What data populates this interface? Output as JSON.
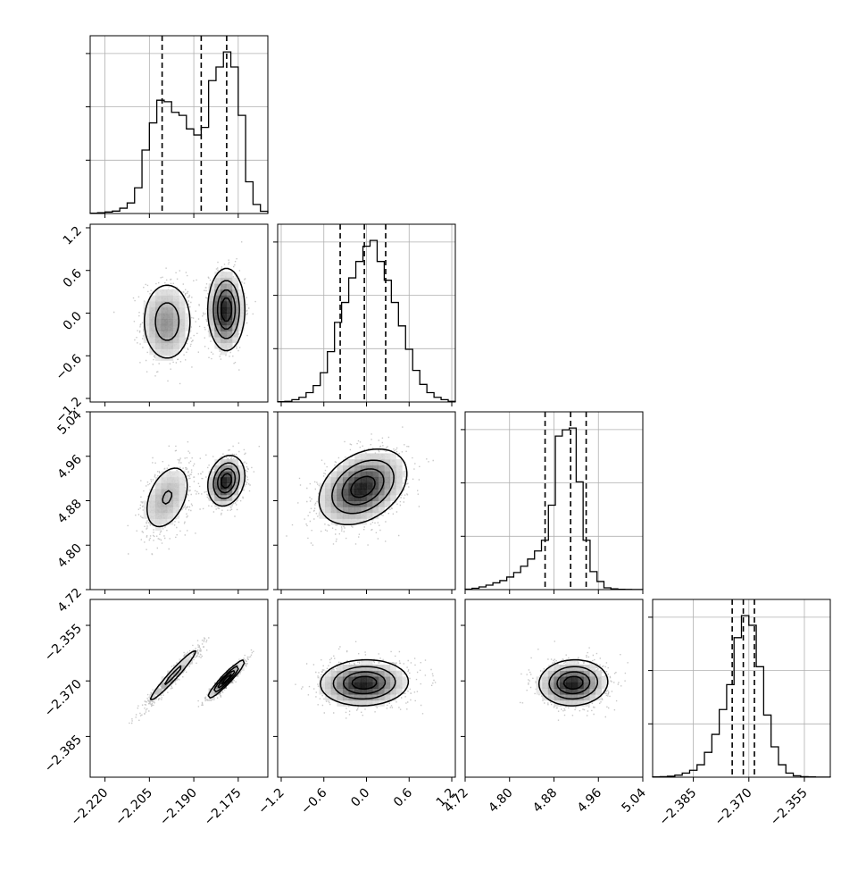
{
  "chart_data": {
    "type": "corner",
    "title": "",
    "parameters": 4,
    "quantiles": [
      0.16,
      0.5,
      0.84
    ],
    "grid": true,
    "ranges": [
      [
        -2.225,
        -2.165
      ],
      [
        -1.25,
        1.25
      ],
      [
        4.72,
        5.04
      ],
      [
        -2.396,
        -2.348
      ]
    ],
    "tick_labels": [
      [
        "−2.220",
        "−2.205",
        "−2.190",
        "−2.175"
      ],
      [
        "−1.2",
        "−0.6",
        "0.0",
        "0.6",
        "1.2"
      ],
      [
        "4.72",
        "4.80",
        "4.88",
        "4.96",
        "5.04"
      ],
      [
        "−2.385",
        "−2.370",
        "−2.355"
      ]
    ],
    "tick_values": [
      [
        -2.22,
        -2.205,
        -2.19,
        -2.175
      ],
      [
        -1.2,
        -0.6,
        0.0,
        0.6,
        1.2
      ],
      [
        4.72,
        4.8,
        4.88,
        4.96,
        5.04
      ],
      [
        -2.385,
        -2.37,
        -2.355
      ]
    ],
    "marginals": [
      {
        "quantile_lines": [
          -2.2007,
          -2.1875,
          -2.1789
        ],
        "bins": [
          -2.225,
          -2.2225,
          -2.22,
          -2.2175,
          -2.215,
          -2.2125,
          -2.21,
          -2.2075,
          -2.205,
          -2.2025,
          -2.2,
          -2.1975,
          -2.195,
          -2.1925,
          -2.19,
          -2.1875,
          -2.185,
          -2.1825,
          -2.18,
          -2.1775,
          -2.175,
          -2.1725,
          -2.17,
          -2.1675,
          -2.165
        ],
        "counts": [
          0.2,
          0.5,
          1.0,
          1.6,
          3.5,
          7.0,
          17.0,
          42.0,
          60.0,
          75.0,
          74.0,
          67.0,
          65.0,
          56.0,
          52.0,
          57.0,
          88.0,
          97.0,
          107.0,
          97.0,
          65.0,
          21.0,
          6.0,
          1.5
        ]
      },
      {
        "quantile_lines": [
          -0.37,
          -0.03,
          0.27
        ],
        "bins": [
          -1.25,
          -1.15,
          -1.05,
          -0.95,
          -0.85,
          -0.75,
          -0.65,
          -0.55,
          -0.45,
          -0.35,
          -0.25,
          -0.15,
          -0.05,
          0.05,
          0.15,
          0.25,
          0.35,
          0.45,
          0.55,
          0.65,
          0.75,
          0.85,
          0.95,
          1.05,
          1.15,
          1.25
        ],
        "counts": [
          0.3,
          0.6,
          2,
          4,
          8,
          14,
          25,
          43,
          68,
          85,
          106,
          120,
          133,
          138,
          120,
          104,
          85,
          65,
          45,
          27,
          15,
          8,
          4,
          2,
          0.6
        ]
      },
      {
        "quantile_lines": [
          4.864,
          4.91,
          4.938
        ],
        "bins": [
          4.72,
          4.7325,
          4.745,
          4.7575,
          4.77,
          4.7825,
          4.795,
          4.8075,
          4.82,
          4.8325,
          4.845,
          4.8575,
          4.87,
          4.8825,
          4.895,
          4.9075,
          4.92,
          4.9325,
          4.945,
          4.9575,
          4.97,
          4.9825,
          4.995,
          5.0075,
          5.02,
          5.04
        ],
        "counts": [
          0.5,
          1.5,
          3,
          5,
          7.5,
          10,
          14,
          19,
          26,
          34,
          43,
          55,
          94,
          171,
          178,
          180,
          120,
          55,
          20,
          9,
          2,
          0.8,
          0.3,
          0.2,
          0.1
        ]
      },
      {
        "quantile_lines": [
          -2.3745,
          -2.3715,
          -2.3685
        ],
        "bins": [
          -2.396,
          -2.394,
          -2.392,
          -2.39,
          -2.388,
          -2.386,
          -2.384,
          -2.382,
          -2.38,
          -2.378,
          -2.376,
          -2.374,
          -2.372,
          -2.37,
          -2.368,
          -2.366,
          -2.364,
          -2.362,
          -2.36,
          -2.358,
          -2.356,
          -2.354,
          -2.352,
          -2.35,
          -2.348
        ],
        "counts": [
          0.2,
          0.4,
          0.7,
          1.5,
          3,
          5,
          9,
          18,
          31,
          49,
          67,
          101,
          117,
          110,
          80,
          45,
          22,
          9,
          3,
          1,
          0.4,
          0.2,
          0.1,
          0.1
        ]
      }
    ],
    "joint_components": {
      "p0p1": [
        {
          "w": 0.45,
          "mx": -2.199,
          "my": -0.12,
          "sx": 0.0045,
          "sy": 0.3,
          "r": 0.0
        },
        {
          "w": 0.55,
          "mx": -2.179,
          "my": 0.05,
          "sx": 0.003,
          "sy": 0.28,
          "r": 0.0
        }
      ],
      "p0p2": [
        {
          "w": 0.45,
          "mx": -2.199,
          "my": 4.886,
          "sx": 0.0045,
          "sy": 0.035,
          "r": 0.4
        },
        {
          "w": 0.55,
          "mx": -2.179,
          "my": 4.916,
          "sx": 0.003,
          "sy": 0.022,
          "r": 0.2
        }
      ],
      "p0p3": [
        {
          "w": 0.45,
          "mx": -2.197,
          "my": -2.3685,
          "sx": 0.0048,
          "sy": 0.0042,
          "r": 0.97
        },
        {
          "w": 0.55,
          "mx": -2.179,
          "my": -2.3695,
          "sx": 0.003,
          "sy": 0.0025,
          "r": 0.94
        }
      ],
      "p1p2": [
        {
          "w": 1.0,
          "mx": -0.05,
          "my": 4.905,
          "sx": 0.3,
          "sy": 0.033,
          "r": 0.35
        }
      ],
      "p1p3": [
        {
          "w": 1.0,
          "mx": -0.03,
          "my": -2.3705,
          "sx": 0.3,
          "sy": 0.003,
          "r": 0.05
        }
      ],
      "p2p3": [
        {
          "w": 1.0,
          "mx": 4.915,
          "my": -2.3705,
          "sx": 0.03,
          "sy": 0.003,
          "r": 0.05
        }
      ]
    }
  }
}
